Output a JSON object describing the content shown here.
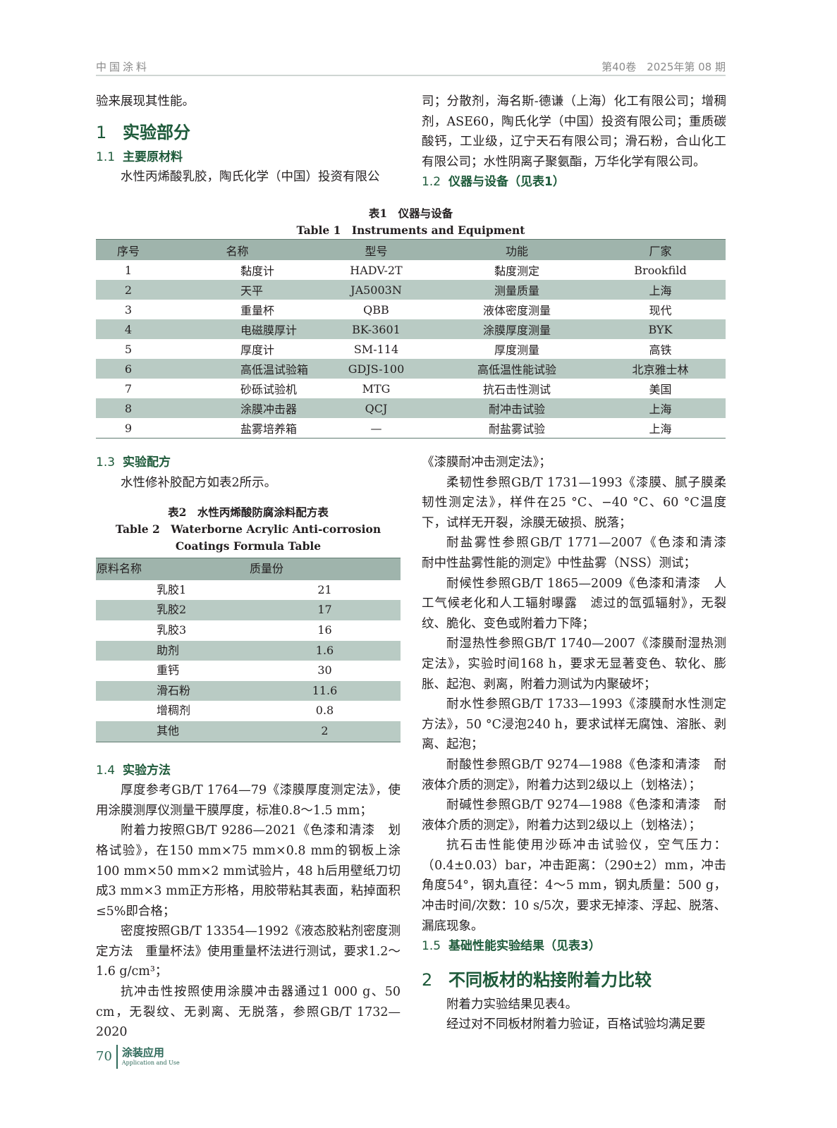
{
  "header": {
    "journal": "中国涂料",
    "issue": "第40卷　2025年第 08 期"
  },
  "top_left": {
    "cont": "验来展现其性能。",
    "h1": {
      "num": "1",
      "title": "实验部分"
    },
    "h11": {
      "num": "1.1",
      "title": "主要原材料"
    },
    "p1": "水性丙烯酸乳胶，陶氏化学（中国）投资有限公"
  },
  "top_right": {
    "p1": "司；分散剂，海名斯-德谦（上海）化工有限公司；增稠剂，ASE60，陶氏化学（中国）投资有限公司；重质碳酸钙，工业级，辽宁天石有限公司；滑石粉，合山化工有限公司；水性阴离子聚氨酯，万华化学有限公司。",
    "h12": {
      "num": "1.2",
      "title": "仪器与设备（见表1）"
    }
  },
  "table1": {
    "title_cn": "表1　仪器与设备",
    "title_en": "Table 1　Instruments and Equipment",
    "headers": [
      "序号",
      "名称",
      "型号",
      "功能",
      "厂家"
    ],
    "rows": [
      [
        "1",
        "黏度计",
        "HADV-2T",
        "黏度测定",
        "Brookfild"
      ],
      [
        "2",
        "天平",
        "JA5003N",
        "测量质量",
        "上海"
      ],
      [
        "3",
        "重量杯",
        "QBB",
        "液体密度测量",
        "现代"
      ],
      [
        "4",
        "电磁膜厚计",
        "BK-3601",
        "涂膜厚度测量",
        "BYK"
      ],
      [
        "5",
        "厚度计",
        "SM-114",
        "厚度测量",
        "高铁"
      ],
      [
        "6",
        "高低温试验箱",
        "GDJS-100",
        "高低温性能试验",
        "北京雅士林"
      ],
      [
        "7",
        "砂砾试验机",
        "MTG",
        "抗石击性测试",
        "美国"
      ],
      [
        "8",
        "涂膜冲击器",
        "QCJ",
        "耐冲击试验",
        "上海"
      ],
      [
        "9",
        "盐雾培养箱",
        "—",
        "耐盐雾试验",
        "上海"
      ]
    ]
  },
  "bottom_left": {
    "h13": {
      "num": "1.3",
      "title": "实验配方"
    },
    "p13": "水性修补胶配方如表2所示。",
    "h14": {
      "num": "1.4",
      "title": "实验方法"
    },
    "paras": [
      "厚度参考GB/T 1764—79《漆膜厚度测定法》，使用涂膜测厚仪测量干膜厚度，标准0.8～1.5 mm；",
      "附着力按照GB/T 9286—2021《色漆和清漆　划格试验》，在150 mm×75 mm×0.8 mm的钢板上涂100 mm×50 mm×2 mm试验片，48 h后用壁纸刀切成3 mm×3 mm正方形格，用胶带粘其表面，粘掉面积≤5%即合格；",
      "密度按照GB/T 13354—1992《液态胶粘剂密度测定方法　重量杯法》使用重量杯法进行测试，要求1.2～1.6 g/cm³；",
      "抗冲击性按照使用涂膜冲击器通过1 000 g、50 cm，无裂纹、无剥离、无脱落，参照GB/T 1732—2020"
    ]
  },
  "table2": {
    "title_cn": "表2　水性丙烯酸防腐涂料配方表",
    "title_en": "Table 2　Waterborne Acrylic Anti-corrosion Coatings Formula Table",
    "headers": [
      "原料名称",
      "质量份"
    ],
    "rows": [
      [
        "乳胶1",
        "21"
      ],
      [
        "乳胶2",
        "17"
      ],
      [
        "乳胶3",
        "16"
      ],
      [
        "助剂",
        "1.6"
      ],
      [
        "重钙",
        "30"
      ],
      [
        "滑石粉",
        "11.6"
      ],
      [
        "增稠剂",
        "0.8"
      ],
      [
        "其他",
        "2"
      ]
    ]
  },
  "bottom_right": {
    "p0": "《漆膜耐冲击测定法》；",
    "paras": [
      "柔韧性参照GB/T 1731—1993《漆膜、腻子膜柔韧性测定法》，样件在25 °C、−40 °C、60 °C温度下，试样无开裂，涂膜无破损、脱落；",
      "耐盐雾性参照GB/T 1771—2007《色漆和清漆　耐中性盐雾性能的测定》中性盐雾（NSS）测试；",
      "耐候性参照GB/T 1865—2009《色漆和清漆　人工气候老化和人工辐射曝露　滤过的氙弧辐射》，无裂纹、脆化、变色或附着力下降；",
      "耐湿热性参照GB/T 1740—2007《漆膜耐湿热测定法》，实验时间168 h，要求无显著变色、软化、膨胀、起泡、剥离，附着力测试为内聚破坏；",
      "耐水性参照GB/T 1733—1993《漆膜耐水性测定方法》，50 °C浸泡240 h，要求试样无腐蚀、溶胀、剥离、起泡；",
      "耐酸性参照GB/T 9274—1988《色漆和清漆　耐液体介质的测定》，附着力达到2级以上（划格法）；",
      "耐碱性参照GB/T 9274—1988《色漆和清漆　耐液体介质的测定》，附着力达到2级以上（划格法）；",
      "抗石击性能使用沙砾冲击试验仪，空气压力：（0.4±0.03）bar，冲击距离：（290±2）mm，冲击角度54°，钢丸直径：4～5 mm，钢丸质量：500 g，冲击时间/次数：10 s/5次，要求无掉漆、浮起、脱落、漏底现象。"
    ],
    "h15": {
      "num": "1.5",
      "title": "基础性能实验结果（见表3）"
    },
    "h2": {
      "num": "2",
      "title": "不同板材的粘接附着力比较"
    },
    "p2a": "附着力实验结果见表4。",
    "p2b": "经过对不同板材附着力验证，百格试验均满足要"
  },
  "footer": {
    "page": "70",
    "section": "涂装应用",
    "section_en": "Application and Use"
  },
  "colors": {
    "heading": "#1e5a3a",
    "table_header": "#9fb4ac",
    "table_stripe": "#b9cbc4"
  }
}
